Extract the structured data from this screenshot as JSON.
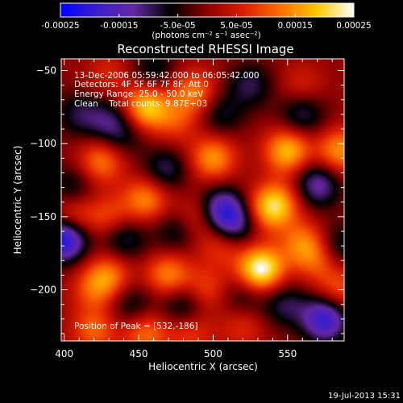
{
  "chart_data": {
    "type": "heatmap",
    "title": "Reconstructed RHESSI Image",
    "xlabel": "Heliocentric X (arcsec)",
    "ylabel": "Heliocentric Y (arcsec)",
    "xlim": [
      398,
      588
    ],
    "ylim": [
      -235,
      -42
    ],
    "x_ticks": [
      400,
      450,
      500,
      550
    ],
    "x_tick_labels": [
      "400",
      "450",
      "500",
      "550"
    ],
    "y_ticks": [
      -50,
      -100,
      -150,
      -200
    ],
    "y_tick_labels": [
      "−50",
      "−100",
      "−150",
      "−200"
    ],
    "colorbar": {
      "range": [
        -0.00025,
        0.00025
      ],
      "ticks": [
        -0.00025,
        -0.00015,
        -5e-05,
        5e-05,
        0.00015,
        0.00025
      ],
      "tick_labels": [
        "-0.00025",
        "-0.00015",
        "-5.0e-05",
        "5.0e-05",
        "0.00015",
        "0.00025"
      ],
      "unit_label": "(photons cm⁻² s⁻¹ asec⁻²)",
      "colors": [
        "#0000ff",
        "#3c1ecc",
        "#6428a0",
        "#000000",
        "#8c0000",
        "#dc1e00",
        "#ff6e00",
        "#ffc800",
        "#ffffff"
      ]
    },
    "annotations": [
      "13-Dec-2006 05:59:42.000 to 06:05:42.000",
      "Detectors: 4F 5F 6F 7F 8F, Att 0",
      "Energy Range: 25.0 - 50.0 keV",
      "Clean    Total counts: 9.87E+03"
    ],
    "peak_label": "Position of Peak = [532,-186]",
    "peak": [
      532,
      -186
    ],
    "sources": [
      {
        "x": 455,
        "y": -75,
        "value": 0.00019
      },
      {
        "x": 487,
        "y": -65,
        "value": 0.00013
      },
      {
        "x": 550,
        "y": -105,
        "value": 0.00018
      },
      {
        "x": 585,
        "y": -105,
        "value": 0.00015
      },
      {
        "x": 475,
        "y": -85,
        "value": 8e-05
      },
      {
        "x": 500,
        "y": -110,
        "value": 0.00015
      },
      {
        "x": 537,
        "y": -145,
        "value": 0.00014
      },
      {
        "x": 545,
        "y": -140,
        "value": 0.0001
      },
      {
        "x": 425,
        "y": -112,
        "value": 0.00013
      },
      {
        "x": 455,
        "y": -138,
        "value": 0.00014
      },
      {
        "x": 490,
        "y": -150,
        "value": 9e-05
      },
      {
        "x": 405,
        "y": -150,
        "value": 0.00011
      },
      {
        "x": 430,
        "y": -150,
        "value": 9e-05
      },
      {
        "x": 532,
        "y": -186,
        "value": 0.00025
      },
      {
        "x": 505,
        "y": -170,
        "value": 8e-05
      },
      {
        "x": 560,
        "y": -168,
        "value": 0.00012
      },
      {
        "x": 570,
        "y": -180,
        "value": 9e-05
      },
      {
        "x": 430,
        "y": -190,
        "value": 0.00012
      },
      {
        "x": 420,
        "y": -200,
        "value": 9e-05
      },
      {
        "x": 470,
        "y": -190,
        "value": 0.00014
      },
      {
        "x": 495,
        "y": -200,
        "value": 9e-05
      },
      {
        "x": 420,
        "y": -228,
        "value": 0.00011
      },
      {
        "x": 455,
        "y": -230,
        "value": 0.00012
      },
      {
        "x": 485,
        "y": -230,
        "value": 8e-05
      },
      {
        "x": 520,
        "y": -225,
        "value": 7e-05
      },
      {
        "x": 585,
        "y": -200,
        "value": 0.0001
      },
      {
        "x": 430,
        "y": -52,
        "value": 6e-05
      },
      {
        "x": 560,
        "y": -60,
        "value": 6e-05
      },
      {
        "x": 505,
        "y": -80,
        "value": -8e-05
      },
      {
        "x": 525,
        "y": -60,
        "value": -9e-05
      },
      {
        "x": 560,
        "y": -80,
        "value": -0.0001
      },
      {
        "x": 570,
        "y": -128,
        "value": -0.00014
      },
      {
        "x": 505,
        "y": -145,
        "value": -0.00017
      },
      {
        "x": 515,
        "y": -155,
        "value": -0.00012
      },
      {
        "x": 400,
        "y": -165,
        "value": -0.00024
      },
      {
        "x": 405,
        "y": -130,
        "value": -8e-05
      },
      {
        "x": 440,
        "y": -165,
        "value": -0.0001
      },
      {
        "x": 468,
        "y": -118,
        "value": -0.0001
      },
      {
        "x": 475,
        "y": -160,
        "value": -8e-05
      },
      {
        "x": 430,
        "y": -85,
        "value": -9e-05
      },
      {
        "x": 410,
        "y": -80,
        "value": -8e-05
      },
      {
        "x": 480,
        "y": -210,
        "value": -0.0001
      },
      {
        "x": 445,
        "y": -210,
        "value": -8e-05
      },
      {
        "x": 575,
        "y": -220,
        "value": -0.0002
      },
      {
        "x": 548,
        "y": -210,
        "value": -9e-05
      },
      {
        "x": 520,
        "y": -205,
        "value": -7e-05
      },
      {
        "x": 585,
        "y": -170,
        "value": -9e-05
      },
      {
        "x": 460,
        "y": -50,
        "value": -8e-05
      },
      {
        "x": 440,
        "y": -95,
        "value": -6e-05
      }
    ]
  },
  "footer": {
    "timestamp": "19-Jul-2013 15:31"
  }
}
